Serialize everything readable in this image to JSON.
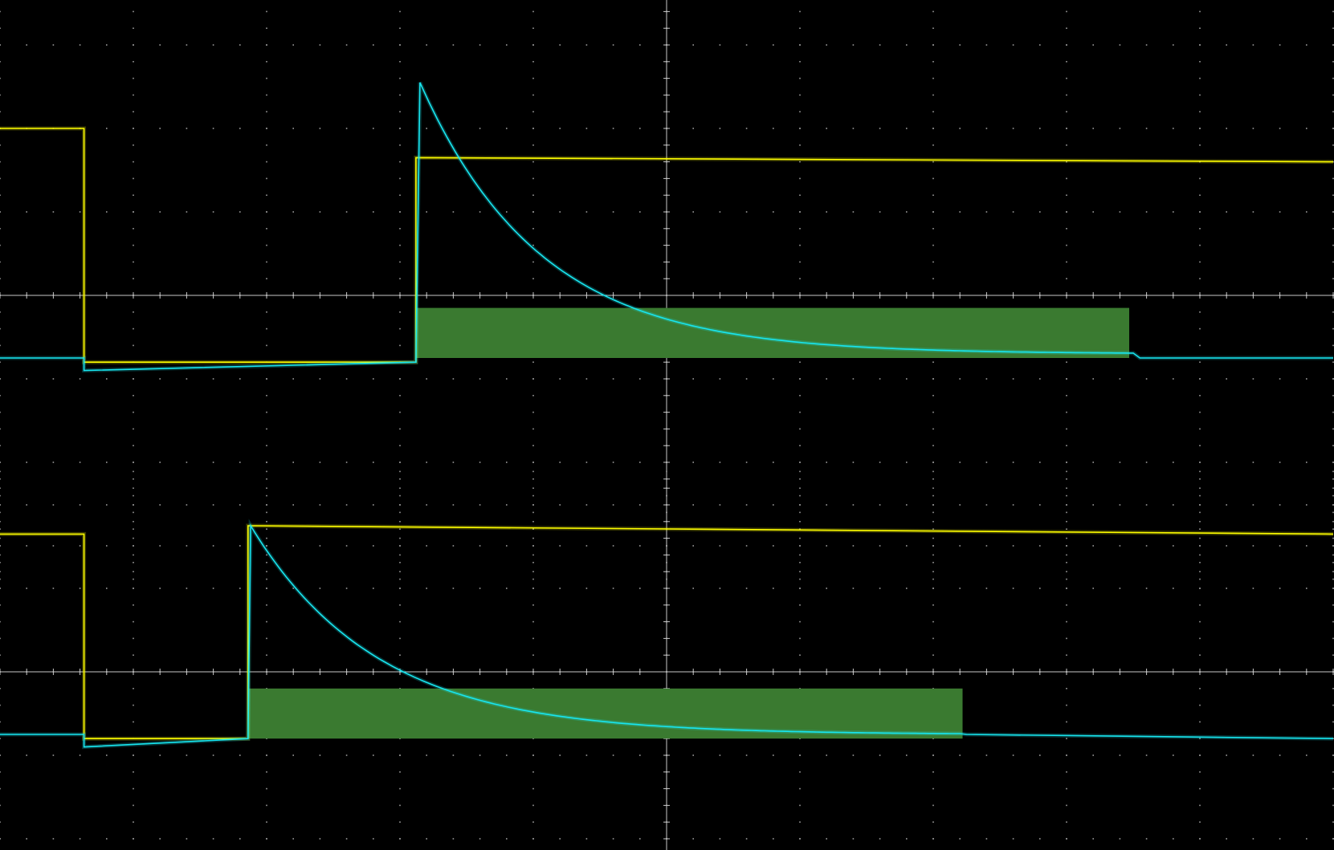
{
  "colors": {
    "background": "#000000",
    "grid": "#9a9a9a",
    "gate_trace": "#ffff00",
    "response_trace": "#19e6f0",
    "window_fill": "#3a7a30",
    "window_trace": "#30e8a8"
  },
  "chart_data": [
    {
      "type": "line",
      "title": "",
      "xlabel": "",
      "ylabel": "",
      "xlim": [
        -5,
        5
      ],
      "ylim": [
        -4,
        4
      ],
      "grid": true,
      "legend": "none",
      "series": [
        {
          "color": "#ffff00",
          "x": [
            -5.0,
            -4.37,
            -4.37,
            -1.88,
            -1.88,
            5.0
          ],
          "y": [
            2.0,
            2.0,
            -0.8,
            -0.8,
            1.65,
            1.6
          ]
        },
        {
          "color": "#19e6f0",
          "decay": {
            "tau_div": 0.9
          },
          "x": [
            -5.0,
            -4.37,
            -4.37,
            -1.88,
            -1.88,
            -1.85,
            3.5,
            3.55,
            5.0
          ],
          "y": [
            -0.75,
            -0.75,
            -0.9,
            -0.8,
            -0.8,
            2.55,
            -0.7,
            -0.75,
            -0.75
          ]
        }
      ],
      "bands": [
        {
          "x": [
            -1.88,
            3.47
          ],
          "y": [
            -0.75,
            -0.15
          ],
          "color": "#3a7a30"
        }
      ]
    },
    {
      "type": "line",
      "title": "",
      "xlabel": "",
      "ylabel": "",
      "xlim": [
        -5,
        5
      ],
      "ylim": [
        -4,
        4
      ],
      "grid": true,
      "legend": "none",
      "series": [
        {
          "color": "#ffff00",
          "x": [
            -5.0,
            -4.37,
            -4.37,
            -3.14,
            -3.14,
            5.0
          ],
          "y": [
            1.65,
            1.65,
            -0.8,
            -0.8,
            1.75,
            1.65
          ]
        },
        {
          "color": "#19e6f0",
          "decay": {
            "tau_div": 0.95
          },
          "x": [
            -5.0,
            -4.37,
            -4.37,
            -3.14,
            -3.14,
            -3.12,
            2.2,
            2.25,
            5.0
          ],
          "y": [
            -0.75,
            -0.75,
            -0.9,
            -0.8,
            -0.8,
            1.75,
            -0.75,
            -0.75,
            -0.8
          ]
        }
      ],
      "bands": [
        {
          "x": [
            -3.14,
            2.22
          ],
          "y": [
            -0.8,
            -0.2
          ],
          "color": "#3a7a30"
        }
      ]
    }
  ]
}
